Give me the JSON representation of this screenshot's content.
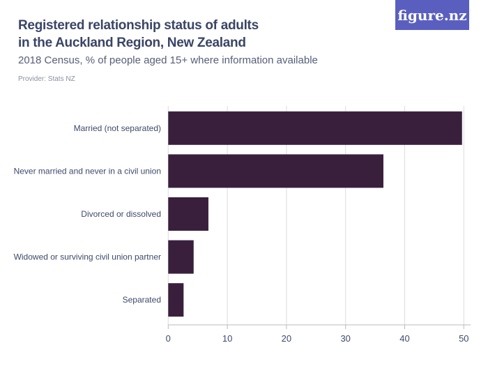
{
  "header": {
    "title": "Registered relationship status of adults in the Auckland Region, New Zealand",
    "subtitle": "2018 Census, % of people aged 15+ where information available",
    "provider": "Provider: Stats NZ",
    "logo": "figure.nz"
  },
  "chart_data": {
    "type": "bar",
    "orientation": "horizontal",
    "title": "Registered relationship status of adults in the Auckland Region, New Zealand",
    "subtitle": "2018 Census, % of people aged 15+ where information available",
    "categories": [
      "Married (not separated)",
      "Never married and never in a civil union",
      "Divorced or dissolved",
      "Widowed or surviving civil union partner",
      "Separated"
    ],
    "values": [
      49.7,
      36.4,
      6.8,
      4.3,
      2.6
    ],
    "xlim": [
      0,
      50
    ],
    "xticks": [
      0,
      10,
      20,
      30,
      40,
      50
    ],
    "grid": true,
    "bar_color": "#3a1f3d"
  }
}
